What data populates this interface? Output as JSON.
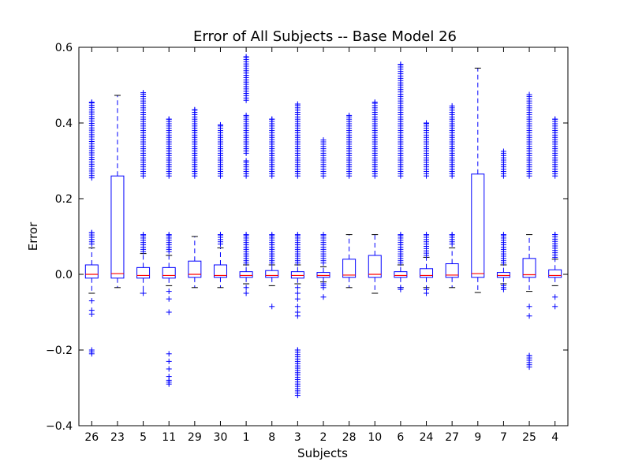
{
  "chart_data": {
    "type": "boxplot",
    "title": "Error of All Subjects -- Base Model 26",
    "xlabel": "Subjects",
    "ylabel": "Error",
    "ylim": [
      -0.4,
      0.6
    ],
    "yticks": [
      -0.4,
      -0.2,
      0.0,
      0.2,
      0.4,
      0.6
    ],
    "ytick_labels": [
      "−0.4",
      "−0.2",
      "0.0",
      "0.2",
      "0.4",
      "0.6"
    ],
    "grid": false,
    "colors": {
      "box": "#0000ff",
      "median": "#ff0000",
      "whisker": "#0000ff",
      "cap": "#000000",
      "flier": "#0000ff"
    },
    "categories": [
      "26",
      "23",
      "5",
      "11",
      "29",
      "30",
      "1",
      "8",
      "3",
      "2",
      "28",
      "10",
      "6",
      "24",
      "27",
      "9",
      "7",
      "25",
      "4"
    ],
    "boxes": [
      {
        "q1": -0.01,
        "median": 0.0,
        "q3": 0.025,
        "whislo": -0.05,
        "whishi": 0.07,
        "fliers_high": {
          "bands": [
            [
              0.08,
              0.11
            ],
            [
              0.255,
              0.455
            ]
          ],
          "max": 0.455
        },
        "fliers_low": [
          -0.07,
          -0.095,
          -0.105,
          -0.2,
          -0.205,
          -0.21
        ]
      },
      {
        "q1": -0.01,
        "median": 0.002,
        "q3": 0.26,
        "whislo": -0.035,
        "whishi": 0.473,
        "fliers_high": {
          "bands": [],
          "max": null
        },
        "fliers_low": []
      },
      {
        "q1": -0.01,
        "median": -0.003,
        "q3": 0.018,
        "whislo": -0.05,
        "whishi": 0.055,
        "fliers_high": {
          "bands": [
            [
              0.06,
              0.105
            ],
            [
              0.26,
              0.48
            ]
          ],
          "max": 0.48
        },
        "fliers_low": [
          -0.05
        ]
      },
      {
        "q1": -0.01,
        "median": -0.003,
        "q3": 0.018,
        "whislo": -0.03,
        "whishi": 0.05,
        "fliers_high": {
          "bands": [
            [
              0.06,
              0.105
            ],
            [
              0.26,
              0.41
            ]
          ],
          "max": 0.41
        },
        "fliers_low": [
          -0.045,
          -0.065,
          -0.1,
          -0.21,
          -0.23,
          -0.25,
          -0.27,
          -0.28,
          -0.285,
          -0.29
        ]
      },
      {
        "q1": -0.008,
        "median": 0.0,
        "q3": 0.035,
        "whislo": -0.035,
        "whishi": 0.1,
        "fliers_high": {
          "bands": [
            [
              0.26,
              0.435
            ]
          ],
          "max": 0.435
        },
        "fliers_low": []
      },
      {
        "q1": -0.008,
        "median": -0.003,
        "q3": 0.025,
        "whislo": -0.035,
        "whishi": 0.07,
        "fliers_high": {
          "bands": [
            [
              0.08,
              0.105
            ],
            [
              0.26,
              0.395
            ]
          ],
          "max": 0.395
        },
        "fliers_low": []
      },
      {
        "q1": -0.008,
        "median": -0.003,
        "q3": 0.007,
        "whislo": -0.025,
        "whishi": 0.025,
        "fliers_high": {
          "bands": [
            [
              0.03,
              0.105
            ],
            [
              0.26,
              0.3
            ],
            [
              0.32,
              0.42
            ],
            [
              0.46,
              0.575
            ]
          ],
          "max": 0.575
        },
        "fliers_low": [
          -0.035,
          -0.05
        ]
      },
      {
        "q1": -0.008,
        "median": -0.003,
        "q3": 0.01,
        "whislo": -0.03,
        "whishi": 0.025,
        "fliers_high": {
          "bands": [
            [
              0.03,
              0.105
            ],
            [
              0.26,
              0.41
            ]
          ],
          "max": 0.41
        },
        "fliers_low": [
          -0.085
        ]
      },
      {
        "q1": -0.01,
        "median": -0.003,
        "q3": 0.007,
        "whislo": -0.025,
        "whishi": 0.025,
        "fliers_high": {
          "bands": [
            [
              0.03,
              0.105
            ],
            [
              0.26,
              0.45
            ]
          ],
          "max": 0.45
        },
        "fliers_low": [
          -0.035,
          -0.05,
          -0.065,
          -0.085,
          -0.1,
          -0.11,
          {
            "band": [
              -0.2,
              -0.32
            ]
          }
        ]
      },
      {
        "q1": -0.008,
        "median": -0.003,
        "q3": 0.005,
        "whislo": -0.02,
        "whishi": 0.02,
        "fliers_high": {
          "bands": [
            [
              0.03,
              0.105
            ],
            [
              0.26,
              0.355
            ]
          ],
          "max": 0.355
        },
        "fliers_low": [
          -0.025,
          -0.03,
          -0.035,
          -0.06
        ]
      },
      {
        "q1": -0.008,
        "median": -0.002,
        "q3": 0.04,
        "whislo": -0.035,
        "whishi": 0.105,
        "fliers_high": {
          "bands": [
            [
              0.26,
              0.42
            ]
          ],
          "max": 0.42
        },
        "fliers_low": []
      },
      {
        "q1": -0.008,
        "median": 0.0,
        "q3": 0.05,
        "whislo": -0.05,
        "whishi": 0.105,
        "fliers_high": {
          "bands": [
            [
              0.26,
              0.455
            ]
          ],
          "max": 0.455
        },
        "fliers_low": []
      },
      {
        "q1": -0.008,
        "median": -0.003,
        "q3": 0.007,
        "whislo": -0.035,
        "whishi": 0.025,
        "fliers_high": {
          "bands": [
            [
              0.03,
              0.105
            ],
            [
              0.26,
              0.555
            ]
          ],
          "max": 0.555
        },
        "fliers_low": [
          -0.035,
          -0.04
        ]
      },
      {
        "q1": -0.008,
        "median": -0.003,
        "q3": 0.015,
        "whislo": -0.035,
        "whishi": 0.045,
        "fliers_high": {
          "bands": [
            [
              0.05,
              0.105
            ],
            [
              0.26,
              0.4
            ]
          ],
          "max": 0.4
        },
        "fliers_low": [
          -0.04,
          -0.05
        ]
      },
      {
        "q1": -0.008,
        "median": -0.002,
        "q3": 0.028,
        "whislo": -0.035,
        "whishi": 0.07,
        "fliers_high": {
          "bands": [
            [
              0.08,
              0.105
            ],
            [
              0.26,
              0.445
            ]
          ],
          "max": 0.445
        },
        "fliers_low": []
      },
      {
        "q1": -0.008,
        "median": 0.002,
        "q3": 0.265,
        "whislo": -0.048,
        "whishi": 0.545,
        "fliers_high": {
          "bands": [],
          "max": null
        },
        "fliers_low": []
      },
      {
        "q1": -0.008,
        "median": -0.003,
        "q3": 0.005,
        "whislo": -0.025,
        "whishi": 0.025,
        "fliers_high": {
          "bands": [
            [
              0.03,
              0.105
            ],
            [
              0.26,
              0.325
            ]
          ],
          "max": 0.325
        },
        "fliers_low": [
          -0.03,
          -0.035,
          -0.04
        ]
      },
      {
        "q1": -0.008,
        "median": -0.001,
        "q3": 0.042,
        "whislo": -0.045,
        "whishi": 0.105,
        "fliers_high": {
          "bands": [
            [
              0.26,
              0.475
            ]
          ],
          "max": 0.475
        },
        "fliers_low": [
          -0.085,
          -0.11,
          {
            "band": [
              -0.215,
              -0.245
            ]
          }
        ]
      },
      {
        "q1": -0.008,
        "median": -0.003,
        "q3": 0.012,
        "whislo": -0.03,
        "whishi": 0.04,
        "fliers_high": {
          "bands": [
            [
              0.045,
              0.105
            ],
            [
              0.26,
              0.41
            ]
          ],
          "max": 0.41
        },
        "fliers_low": [
          -0.06,
          -0.085
        ]
      }
    ]
  }
}
